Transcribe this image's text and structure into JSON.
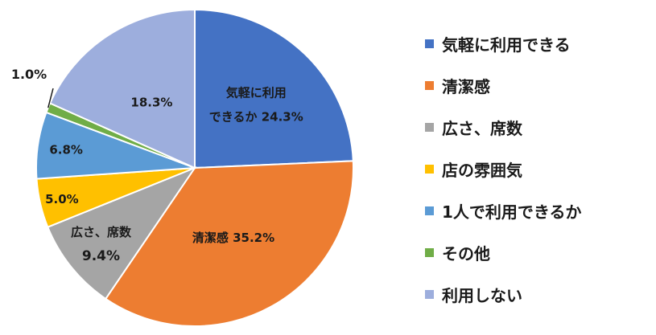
{
  "chart_data": {
    "type": "pie",
    "title": "",
    "legend_position": "right",
    "categories": [
      "気軽に利用できる",
      "清潔感",
      "広さ、席数",
      "店の雰囲気",
      "1人で利用できるか",
      "その他",
      "利用しない"
    ],
    "values": [
      24.3,
      35.2,
      9.4,
      5.0,
      6.8,
      1.0,
      18.3
    ],
    "value_labels": [
      "24.3%",
      "35.2%",
      "9.4%",
      "5.0%",
      "6.8%",
      "1.0%",
      "18.3%"
    ],
    "slice_labels": [
      [
        "気軽に利用",
        "できるか"
      ],
      [
        "清潔感"
      ],
      [
        "広さ、席数"
      ],
      [],
      [],
      [],
      []
    ],
    "colors": [
      "#4472C4",
      "#ED7D31",
      "#A5A5A5",
      "#FFC000",
      "#5B9BD5",
      "#70AD47",
      "#9DAEDD"
    ],
    "start_angle": "12 o'clock",
    "direction": "clockwise"
  }
}
